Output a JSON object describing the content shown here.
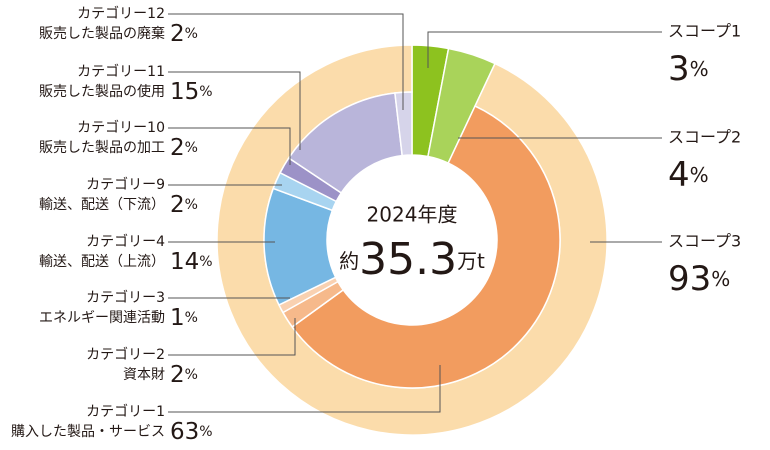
{
  "chart_data": {
    "type": "nested-donut",
    "center_title": "2024年度",
    "total_prefix": "約",
    "total": 35.3,
    "total_unit": "万t",
    "unit": "%",
    "outer": [
      {
        "name": "スコープ1",
        "value": 3,
        "color": "#8dc21f"
      },
      {
        "name": "スコープ2",
        "value": 4,
        "color": "#a9d35a"
      },
      {
        "name": "スコープ3",
        "value": 93,
        "color": "#fbdcab"
      }
    ],
    "inner": [
      {
        "name": "カテゴリー1",
        "description": "購入した製品・サービス",
        "value": 63,
        "color": "#f29c5f"
      },
      {
        "name": "カテゴリー2",
        "description": "資本財",
        "value": 2,
        "color": "#f6b98b"
      },
      {
        "name": "カテゴリー3",
        "description": "エネルギー関連活動",
        "value": 1,
        "color": "#f9d1b1"
      },
      {
        "name": "カテゴリー4",
        "description": "輸送、配送（上流）",
        "value": 14,
        "color": "#76b7e3"
      },
      {
        "name": "カテゴリー9",
        "description": "輸送、配送（下流）",
        "value": 2,
        "color": "#a8d4f0"
      },
      {
        "name": "カテゴリー10",
        "description": "販売した製品の加工",
        "value": 2,
        "color": "#9c92c7"
      },
      {
        "name": "カテゴリー11",
        "description": "販売した製品の使用",
        "value": 15,
        "color": "#b9b5da"
      },
      {
        "name": "カテゴリー12",
        "description": "販売した製品の廃棄",
        "value": 2,
        "color": "#d6d4ea"
      }
    ]
  }
}
